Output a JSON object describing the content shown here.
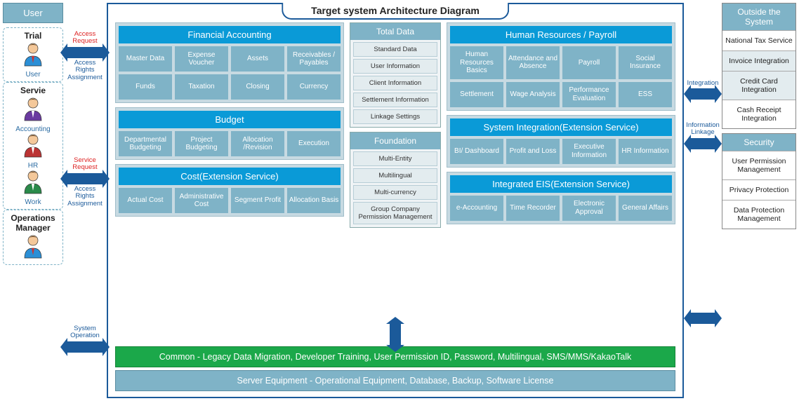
{
  "title": "Target system Architecture Diagram",
  "colors": {
    "header_teal": "#7fb3c7",
    "module_bg": "#c7dae2",
    "module_header": "#0a9ad7",
    "module_item": "#7fb3c7",
    "arrow": "#1b5a9a",
    "common_bar": "#1ba84a",
    "text_red": "#d22",
    "text_blue": "#1b5a9a"
  },
  "left_header": "User",
  "left_groups": [
    {
      "title": "Trial",
      "roles": [
        "User"
      ]
    },
    {
      "title": "Servie",
      "roles": [
        "Accounting",
        "HR",
        "Work"
      ]
    },
    {
      "title": "Operations Manager",
      "roles": []
    }
  ],
  "left_arrows": [
    {
      "top": "Access Request",
      "top_color": "red",
      "bottom": "Access Rights Assignment"
    },
    {
      "top": "Service Request",
      "top_color": "red",
      "bottom": "Access Rights Assignment"
    },
    {
      "top": "System Operation",
      "top_color": "blue",
      "bottom": ""
    }
  ],
  "modules_left": [
    {
      "header": "Financial Accounting",
      "items": [
        "Master Data",
        "Expense Voucher",
        "Assets",
        "Receivables / Payables",
        "Funds",
        "Taxation",
        "Closing",
        "Currency"
      ]
    },
    {
      "header": "Budget",
      "items": [
        "Departmental Budgeting",
        "Project Budgeting",
        "Allocation /Revision",
        "Execution"
      ]
    },
    {
      "header": "Cost(Extension Service)",
      "items": [
        "Actual Cost",
        "Administrative Cost",
        "Segment Profit",
        "Allocation Basis"
      ]
    }
  ],
  "center_boxes": [
    {
      "header": "Total Data",
      "items": [
        "Standard Data",
        "User Information",
        "Client Information",
        "Settlement Information",
        "Linkage Settings"
      ]
    },
    {
      "header": "Foundation",
      "items": [
        "Multi-Entity",
        "Multilingual",
        "Multi-currency",
        "Group Company Permission Management"
      ]
    }
  ],
  "modules_right": [
    {
      "header": "Human Resources / Payroll",
      "items": [
        "Human Resources Basics",
        "Attendance and Absence",
        "Payroll",
        "Social Insurance",
        "Settlement",
        "Wage Analysis",
        "Performance Evaluation",
        "ESS"
      ]
    },
    {
      "header": "System Integration(Extension Service)",
      "items": [
        "BI/ Dashboard",
        "Profit and Loss",
        "Executive Information",
        "HR Information"
      ]
    },
    {
      "header": "Integrated EIS(Extension Service)",
      "items": [
        "e-Accounting",
        "Time Recorder",
        "Electronic Approval",
        "General Affairs"
      ]
    }
  ],
  "common_bar": "Common - Legacy Data Migration, Developer Training, User Permission ID, Password, Multilingual, SMS/MMS/KakaoTalk",
  "server_bar": "Server Equipment - Operational Equipment, Database, Backup, Software License",
  "right_arrows": [
    {
      "label": "Integration"
    },
    {
      "label": "Information Linkage"
    }
  ],
  "right_boxes": [
    {
      "header": "Outside the System",
      "items": [
        {
          "text": "National Tax Service",
          "shaded": false
        },
        {
          "text": "Invoice Integration",
          "shaded": true
        },
        {
          "text": "Credit Card Integration",
          "shaded": true
        },
        {
          "text": "Cash Receipt Integration",
          "shaded": false
        }
      ]
    },
    {
      "header": "Security",
      "items": [
        {
          "text": "User Permission Management",
          "shaded": false
        },
        {
          "text": "Privacy Protection",
          "shaded": false
        },
        {
          "text": "Data Protection Management",
          "shaded": false
        }
      ]
    }
  ]
}
